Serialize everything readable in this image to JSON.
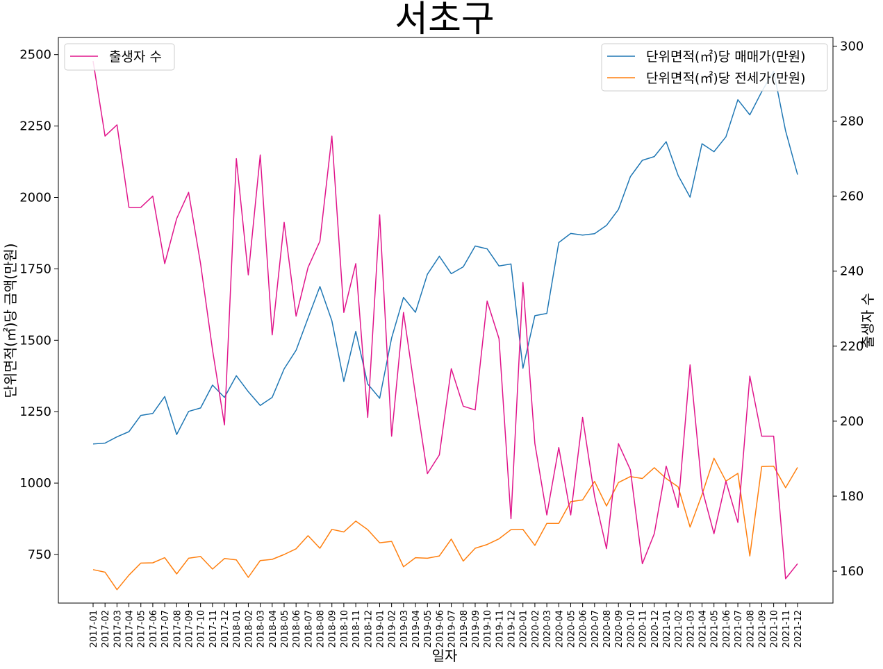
{
  "chart_data": {
    "type": "line",
    "title": "서초구",
    "xlabel": "일자",
    "ylabel_left": "단위면적(㎡)당 금액(만원)",
    "ylabel_right": "출생자 수",
    "ylim_left": [
      580,
      2560
    ],
    "ylim_right": [
      151.5,
      302.3
    ],
    "yticks_left": [
      750,
      1000,
      1250,
      1500,
      1750,
      2000,
      2250,
      2500
    ],
    "yticks_right": [
      160,
      180,
      200,
      220,
      240,
      260,
      280,
      300
    ],
    "categories": [
      "2017-01",
      "2017-02",
      "2017-03",
      "2017-04",
      "2017-05",
      "2017-06",
      "2017-07",
      "2017-08",
      "2017-09",
      "2017-10",
      "2017-11",
      "2017-12",
      "2018-01",
      "2018-02",
      "2018-03",
      "2018-04",
      "2018-05",
      "2018-06",
      "2018-07",
      "2018-08",
      "2018-09",
      "2018-10",
      "2018-11",
      "2018-12",
      "2019-01",
      "2019-02",
      "2019-03",
      "2019-04",
      "2019-05",
      "2019-06",
      "2019-07",
      "2019-08",
      "2019-09",
      "2019-10",
      "2019-11",
      "2019-12",
      "2020-01",
      "2020-02",
      "2020-03",
      "2020-04",
      "2020-05",
      "2020-06",
      "2020-07",
      "2020-08",
      "2020-09",
      "2020-10",
      "2020-11",
      "2020-12",
      "2021-01",
      "2021-02",
      "2021-03",
      "2021-04",
      "2021-05",
      "2021-06",
      "2021-07",
      "2021-08",
      "2021-09",
      "2021-10",
      "2021-11",
      "2021-12"
    ],
    "series": [
      {
        "name": "단위면적(㎡)당 매매가(만원)",
        "axis": "left",
        "color": "#1f77b4",
        "values": [
          1137,
          1140,
          1162,
          1180,
          1237,
          1244,
          1303,
          1170,
          1251,
          1263,
          1343,
          1300,
          1376,
          1320,
          1272,
          1300,
          1400,
          1465,
          1578,
          1688,
          1568,
          1356,
          1531,
          1347,
          1297,
          1508,
          1650,
          1598,
          1731,
          1794,
          1733,
          1757,
          1830,
          1820,
          1760,
          1767,
          1402,
          1586,
          1594,
          1842,
          1874,
          1868,
          1873,
          1902,
          1958,
          2073,
          2130,
          2143,
          2195,
          2077,
          2001,
          2188,
          2160,
          2212,
          2342,
          2289,
          2370,
          2442,
          2233,
          2080
        ]
      },
      {
        "name": "단위면적(㎡)당 전세가(만원)",
        "axis": "left",
        "color": "#ff7f0e",
        "values": [
          697,
          688,
          627,
          678,
          720,
          721,
          739,
          682,
          737,
          743,
          699,
          736,
          731,
          670,
          729,
          733,
          750,
          770,
          816,
          772,
          838,
          829,
          867,
          837,
          791,
          796,
          707,
          739,
          737,
          745,
          804,
          727,
          772,
          785,
          805,
          837,
          838,
          782,
          859,
          859,
          935,
          941,
          1006,
          920,
          1002,
          1023,
          1016,
          1054,
          1016,
          987,
          846,
          960,
          1087,
          1007,
          1034,
          745,
          1058,
          1059,
          984,
          1055
        ]
      },
      {
        "name": "출생자 수",
        "axis": "right",
        "color": "#e0158b",
        "values": [
          296,
          276,
          279,
          257,
          257,
          260,
          242,
          254,
          261,
          242,
          219,
          199,
          270,
          239,
          271,
          223,
          253,
          228,
          241,
          248,
          276,
          229,
          242,
          201,
          255,
          196,
          229,
          207,
          186,
          191,
          214,
          204,
          203,
          232,
          222,
          174,
          237,
          194,
          175,
          193,
          175,
          201,
          180,
          166,
          194,
          187,
          162,
          170,
          188,
          177,
          215,
          182,
          170,
          184,
          173,
          212,
          196,
          196,
          158,
          162
        ]
      }
    ],
    "legend_left": "upper-left",
    "legend_right": "upper-right",
    "grid": false
  }
}
